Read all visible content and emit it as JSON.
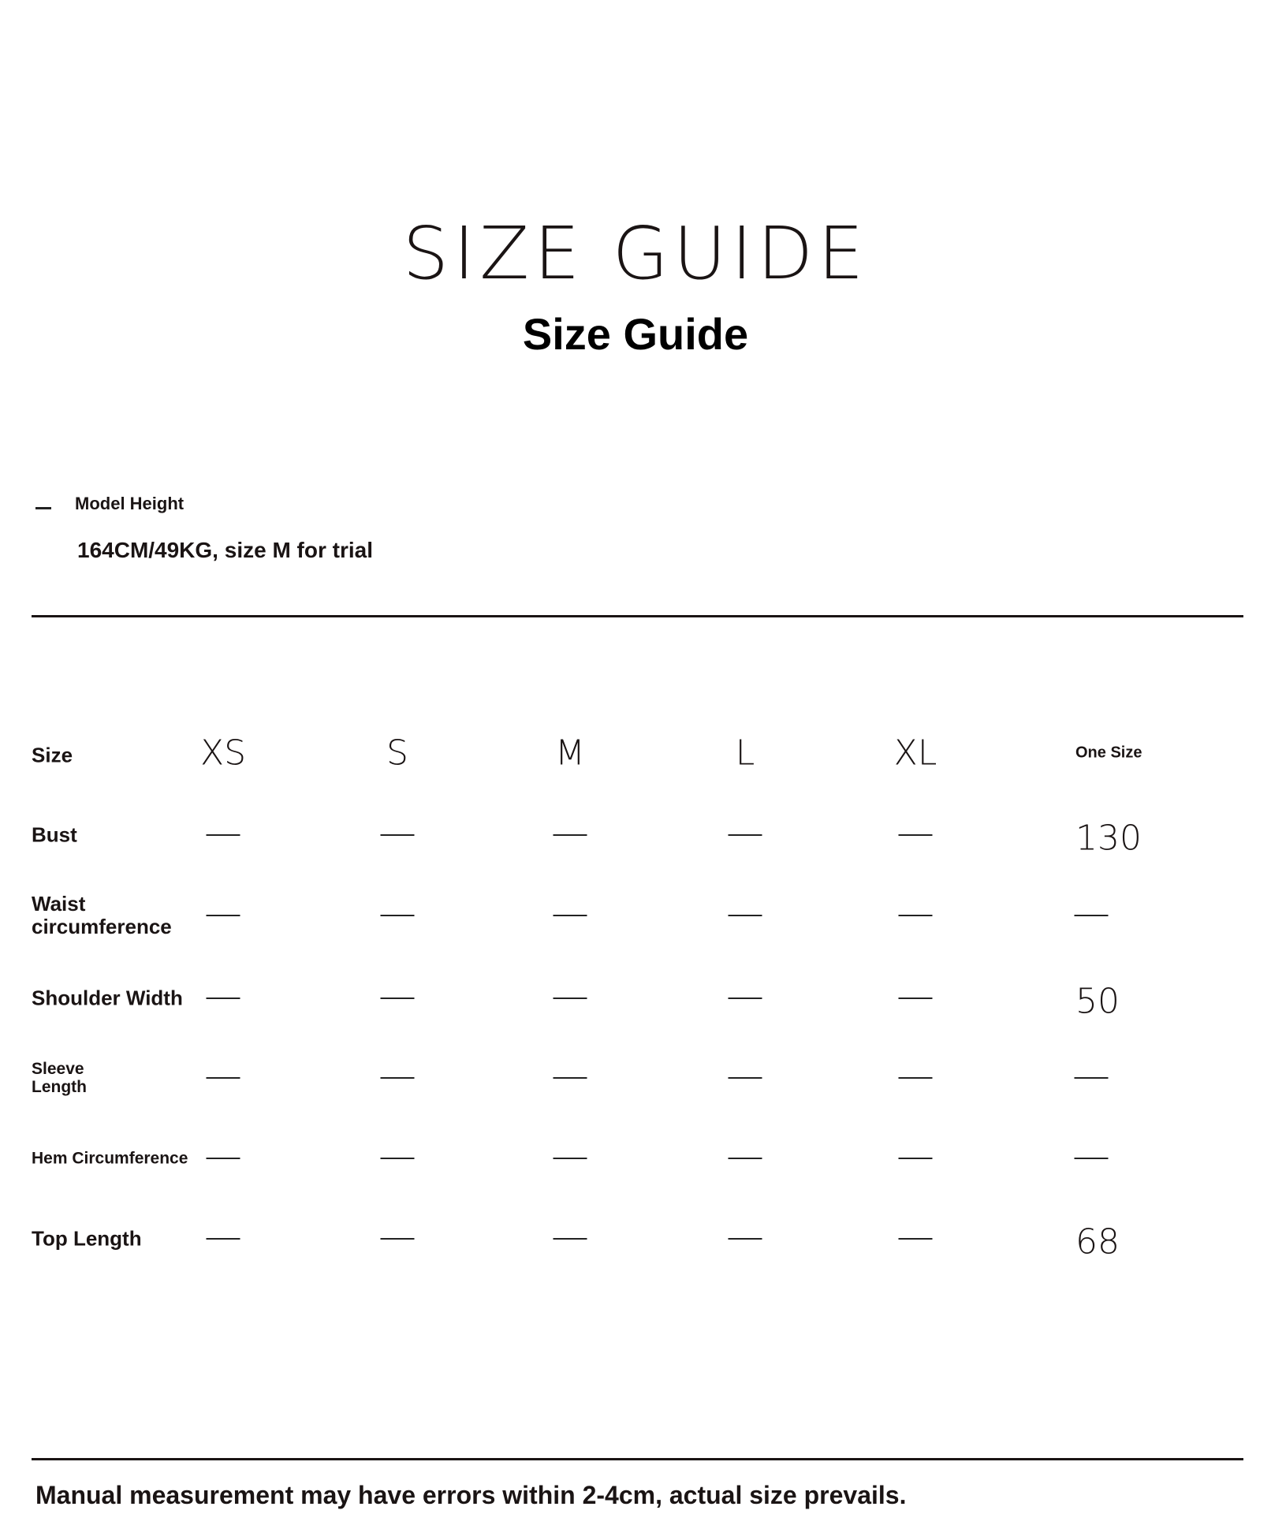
{
  "header": {
    "title": "SIZE GUIDE",
    "subtitle": "Size Guide"
  },
  "model": {
    "label": "Model Height",
    "value": "164CM/49KG, size M for trial",
    "icon": "dash-icon"
  },
  "table": {
    "size_label": "Size",
    "columns": [
      "XS",
      "S",
      "M",
      "L",
      "XL",
      "One Size"
    ],
    "rows": [
      {
        "label": "Bust",
        "values": [
          "—",
          "—",
          "—",
          "—",
          "—",
          "130"
        ]
      },
      {
        "label": "Waist circumference",
        "values": [
          "—",
          "—",
          "—",
          "—",
          "—",
          "—"
        ]
      },
      {
        "label": "Shoulder Width",
        "values": [
          "—",
          "—",
          "—",
          "—",
          "—",
          "50"
        ]
      },
      {
        "label": "Sleeve Length",
        "values": [
          "—",
          "—",
          "—",
          "—",
          "—",
          "—"
        ]
      },
      {
        "label": "Hem Circumference",
        "values": [
          "—",
          "—",
          "—",
          "—",
          "—",
          "—"
        ]
      },
      {
        "label": "Top Length",
        "values": [
          "—",
          "—",
          "—",
          "—",
          "—",
          "68"
        ]
      }
    ]
  },
  "note": "Manual measurement may have errors within 2-4cm, actual size prevails."
}
